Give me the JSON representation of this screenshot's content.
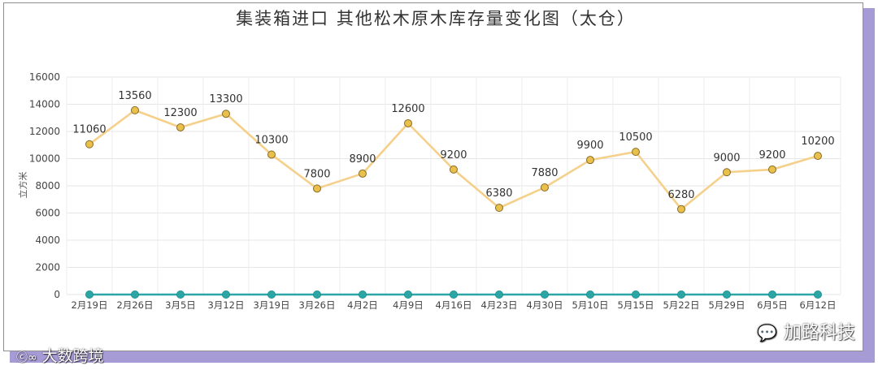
{
  "chart_data": {
    "type": "line",
    "title": "集装箱进口  其他松木原木库存量变化图（太仓）",
    "ylabel": "立方米",
    "xlabel": "",
    "ylim": [
      0,
      16000
    ],
    "yticks": [
      0,
      2000,
      4000,
      6000,
      8000,
      10000,
      12000,
      14000,
      16000
    ],
    "grid": true,
    "categories": [
      "2月19日",
      "2月26日",
      "3月5日",
      "3月12日",
      "3月19日",
      "3月26日",
      "4月2日",
      "4月9日",
      "4月16日",
      "4月23日",
      "4月30日",
      "5月10日",
      "5月15日",
      "5月22日",
      "5月29日",
      "6月5日",
      "6月12日"
    ],
    "series": [
      {
        "values": [
          11060,
          13560,
          12300,
          13300,
          10300,
          7800,
          8900,
          12600,
          9200,
          6380,
          7880,
          9900,
          10500,
          6280,
          9000,
          9200,
          10200
        ],
        "color": "#f5d08a",
        "marker_color": "#e8c04a",
        "data_labels": true
      },
      {
        "values": [
          0,
          0,
          0,
          0,
          0,
          0,
          0,
          0,
          0,
          0,
          0,
          0,
          0,
          0,
          0,
          0,
          0
        ],
        "color": "#2aa6a6",
        "marker_color": "#2aa6a6",
        "data_labels": false
      }
    ]
  },
  "watermarks": {
    "left_text": "大数跨境",
    "left_logo": "ⓒ∞",
    "right_text": "加路科技",
    "right_icon": "wechat-icon"
  }
}
